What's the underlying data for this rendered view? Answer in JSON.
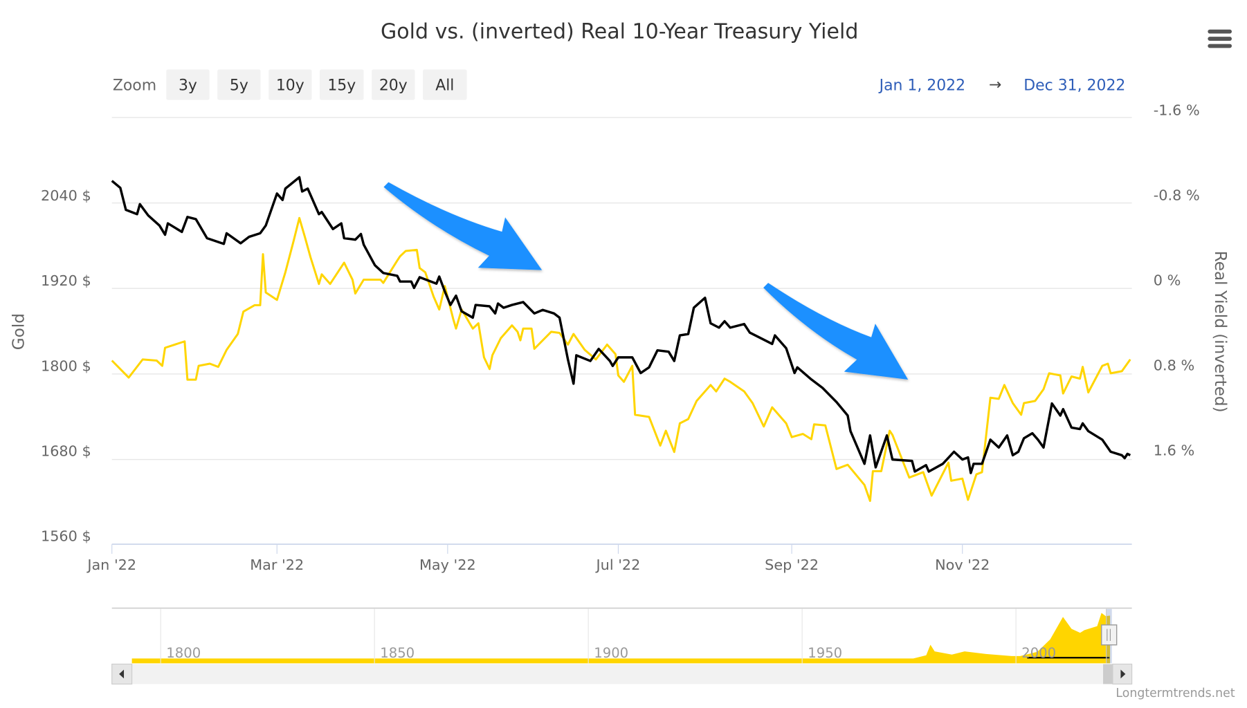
{
  "title": "Gold vs. (inverted) Real 10-Year Treasury Yield",
  "range_selector": {
    "label": "Zoom",
    "buttons": [
      "3y",
      "5y",
      "10y",
      "15y",
      "20y",
      "All"
    ],
    "from": "Jan 1, 2022",
    "arrow": "→",
    "to": "Dec 31, 2022"
  },
  "watermark": "Longtermtrends.net",
  "colors": {
    "gold": "#000000",
    "yield": "#FFD500",
    "arrow": "#1E90FF",
    "date_link": "#2E5DB8"
  },
  "chart_data": {
    "type": "line",
    "title": "Gold vs. (inverted) Real 10-Year Treasury Yield",
    "x_unit": "day of year 2022",
    "xlim": [
      0,
      364
    ],
    "x_ticks": [
      {
        "day": 0,
        "label": "Jan '22"
      },
      {
        "day": 59,
        "label": "Mar '22"
      },
      {
        "day": 120,
        "label": "May '22"
      },
      {
        "day": 181,
        "label": "Jul '22"
      },
      {
        "day": 243,
        "label": "Sep '22"
      },
      {
        "day": 304,
        "label": "Nov '22"
      }
    ],
    "left_axis": {
      "label": "Gold",
      "ylim": [
        1560,
        2160
      ],
      "ticks": [
        "2040 $",
        "1920 $",
        "1800 $",
        "1680 $",
        "1560 $"
      ],
      "tick_values": [
        2040,
        1920,
        1800,
        1680,
        1560
      ]
    },
    "right_axis": {
      "label": "Real Yield (inverted)",
      "ylim": [
        -1.6,
        1.6
      ],
      "inverted": true,
      "ticks": [
        "-1.6 %",
        "-0.8 %",
        "0 %",
        "0.8 %",
        "1.6 %"
      ],
      "tick_values": [
        -1.6,
        -0.8,
        0,
        0.8,
        1.6
      ]
    },
    "grid": true,
    "series": [
      {
        "name": "Gold",
        "axis": "left",
        "points": [
          [
            0,
            2060
          ],
          [
            3,
            2050
          ],
          [
            5,
            2019
          ],
          [
            9,
            2013
          ],
          [
            10,
            2027
          ],
          [
            13,
            2011
          ],
          [
            17,
            1997
          ],
          [
            19,
            1984
          ],
          [
            20,
            2000
          ],
          [
            25,
            1988
          ],
          [
            27,
            2009
          ],
          [
            30,
            2006
          ],
          [
            34,
            1979
          ],
          [
            40,
            1971
          ],
          [
            41,
            1986
          ],
          [
            46,
            1972
          ],
          [
            49,
            1981
          ],
          [
            53,
            1986
          ],
          [
            55,
            1997
          ],
          [
            59,
            2042
          ],
          [
            61,
            2033
          ],
          [
            62,
            2049
          ],
          [
            67,
            2065
          ],
          [
            68,
            2045
          ],
          [
            70,
            2049
          ],
          [
            74,
            2013
          ],
          [
            75,
            2016
          ],
          [
            79,
            1992
          ],
          [
            82,
            2000
          ],
          [
            83,
            1979
          ],
          [
            87,
            1977
          ],
          [
            89,
            1985
          ],
          [
            90,
            1970
          ],
          [
            94,
            1941
          ],
          [
            97,
            1930
          ],
          [
            102,
            1926
          ],
          [
            103,
            1918
          ],
          [
            107,
            1918
          ],
          [
            108,
            1909
          ],
          [
            110,
            1924
          ],
          [
            116,
            1915
          ],
          [
            117,
            1925
          ],
          [
            119,
            1904
          ],
          [
            121,
            1885
          ],
          [
            123,
            1898
          ],
          [
            125,
            1876
          ],
          [
            129,
            1867
          ],
          [
            130,
            1885
          ],
          [
            135,
            1883
          ],
          [
            137,
            1873
          ],
          [
            138,
            1887
          ],
          [
            140,
            1881
          ],
          [
            143,
            1885
          ],
          [
            147,
            1889
          ],
          [
            151,
            1873
          ],
          [
            154,
            1878
          ],
          [
            158,
            1873
          ],
          [
            160,
            1867
          ],
          [
            163,
            1808
          ],
          [
            165,
            1774
          ],
          [
            166,
            1814
          ],
          [
            171,
            1806
          ],
          [
            174,
            1823
          ],
          [
            178,
            1806
          ],
          [
            179,
            1799
          ],
          [
            181,
            1811
          ],
          [
            186,
            1811
          ],
          [
            189,
            1789
          ],
          [
            192,
            1797
          ],
          [
            195,
            1821
          ],
          [
            199,
            1819
          ],
          [
            201,
            1806
          ],
          [
            203,
            1842
          ],
          [
            206,
            1844
          ],
          [
            208,
            1881
          ],
          [
            212,
            1895
          ],
          [
            214,
            1859
          ],
          [
            217,
            1853
          ],
          [
            219,
            1862
          ],
          [
            221,
            1853
          ],
          [
            226,
            1858
          ],
          [
            228,
            1846
          ],
          [
            231,
            1840
          ],
          [
            236,
            1830
          ],
          [
            237,
            1842
          ],
          [
            241,
            1824
          ],
          [
            244,
            1789
          ],
          [
            245,
            1797
          ],
          [
            250,
            1780
          ],
          [
            254,
            1768
          ],
          [
            259,
            1748
          ],
          [
            263,
            1729
          ],
          [
            264,
            1707
          ],
          [
            269,
            1661
          ],
          [
            271,
            1701
          ],
          [
            273,
            1656
          ],
          [
            277,
            1701
          ],
          [
            279,
            1667
          ],
          [
            286,
            1665
          ],
          [
            287,
            1650
          ],
          [
            291,
            1659
          ],
          [
            292,
            1650
          ],
          [
            297,
            1661
          ],
          [
            301,
            1678
          ],
          [
            304,
            1667
          ],
          [
            306,
            1670
          ],
          [
            307,
            1648
          ],
          [
            308,
            1661
          ],
          [
            311,
            1661
          ],
          [
            314,
            1695
          ],
          [
            317,
            1684
          ],
          [
            320,
            1701
          ],
          [
            322,
            1673
          ],
          [
            324,
            1678
          ],
          [
            326,
            1697
          ],
          [
            329,
            1704
          ],
          [
            331,
            1695
          ],
          [
            333,
            1684
          ],
          [
            336,
            1746
          ],
          [
            339,
            1729
          ],
          [
            340,
            1738
          ],
          [
            343,
            1712
          ],
          [
            346,
            1710
          ],
          [
            347,
            1718
          ],
          [
            349,
            1707
          ],
          [
            354,
            1695
          ],
          [
            357,
            1678
          ],
          [
            361,
            1673
          ],
          [
            362,
            1669
          ],
          [
            363,
            1675
          ],
          [
            364,
            1673
          ]
        ]
      },
      {
        "name": "Real Yield (inverted)",
        "axis": "right",
        "points": [
          [
            0,
            0.76
          ],
          [
            6,
            0.92
          ],
          [
            11,
            0.75
          ],
          [
            16,
            0.76
          ],
          [
            18,
            0.81
          ],
          [
            19,
            0.64
          ],
          [
            26,
            0.58
          ],
          [
            27,
            0.94
          ],
          [
            30,
            0.94
          ],
          [
            31,
            0.81
          ],
          [
            35,
            0.79
          ],
          [
            38,
            0.82
          ],
          [
            41,
            0.66
          ],
          [
            45,
            0.51
          ],
          [
            47,
            0.3
          ],
          [
            51,
            0.24
          ],
          [
            53,
            0.24
          ],
          [
            54,
            -0.24
          ],
          [
            55,
            0.12
          ],
          [
            59,
            0.19
          ],
          [
            62,
            -0.07
          ],
          [
            65,
            -0.37
          ],
          [
            67,
            -0.58
          ],
          [
            69,
            -0.4
          ],
          [
            71,
            -0.21
          ],
          [
            74,
            0.04
          ],
          [
            75,
            -0.05
          ],
          [
            78,
            0.04
          ],
          [
            83,
            -0.16
          ],
          [
            86,
            0.0
          ],
          [
            87,
            0.13
          ],
          [
            90,
            0.0
          ],
          [
            96,
            0.0
          ],
          [
            97,
            0.03
          ],
          [
            102,
            -0.18
          ],
          [
            103,
            -0.22
          ],
          [
            105,
            -0.27
          ],
          [
            109,
            -0.28
          ],
          [
            110,
            -0.11
          ],
          [
            112,
            -0.07
          ],
          [
            115,
            0.16
          ],
          [
            117,
            0.28
          ],
          [
            119,
            0.06
          ],
          [
            122,
            0.37
          ],
          [
            123,
            0.46
          ],
          [
            125,
            0.28
          ],
          [
            129,
            0.46
          ],
          [
            131,
            0.41
          ],
          [
            133,
            0.73
          ],
          [
            135,
            0.84
          ],
          [
            136,
            0.71
          ],
          [
            139,
            0.55
          ],
          [
            143,
            0.43
          ],
          [
            145,
            0.49
          ],
          [
            146,
            0.57
          ],
          [
            147,
            0.46
          ],
          [
            150,
            0.46
          ],
          [
            151,
            0.65
          ],
          [
            157,
            0.49
          ],
          [
            160,
            0.5
          ],
          [
            163,
            0.61
          ],
          [
            165,
            0.51
          ],
          [
            169,
            0.66
          ],
          [
            173,
            0.75
          ],
          [
            177,
            0.61
          ],
          [
            180,
            0.7
          ],
          [
            181,
            0.9
          ],
          [
            183,
            0.96
          ],
          [
            186,
            0.81
          ],
          [
            187,
            1.27
          ],
          [
            192,
            1.29
          ],
          [
            196,
            1.56
          ],
          [
            198,
            1.42
          ],
          [
            201,
            1.62
          ],
          [
            203,
            1.35
          ],
          [
            206,
            1.31
          ],
          [
            209,
            1.14
          ],
          [
            214,
            0.99
          ],
          [
            216,
            1.05
          ],
          [
            219,
            0.93
          ],
          [
            221,
            0.96
          ],
          [
            226,
            1.05
          ],
          [
            229,
            1.16
          ],
          [
            233,
            1.38
          ],
          [
            236,
            1.2
          ],
          [
            241,
            1.35
          ],
          [
            243,
            1.48
          ],
          [
            247,
            1.45
          ],
          [
            250,
            1.5
          ],
          [
            251,
            1.36
          ],
          [
            255,
            1.37
          ],
          [
            259,
            1.78
          ],
          [
            263,
            1.74
          ],
          [
            269,
            1.93
          ],
          [
            271,
            2.08
          ],
          [
            272,
            1.8
          ],
          [
            275,
            1.8
          ],
          [
            278,
            1.42
          ],
          [
            279,
            1.46
          ],
          [
            285,
            1.86
          ],
          [
            290,
            1.81
          ],
          [
            293,
            2.03
          ],
          [
            299,
            1.72
          ],
          [
            300,
            1.89
          ],
          [
            304,
            1.87
          ],
          [
            306,
            2.07
          ],
          [
            309,
            1.83
          ],
          [
            311,
            1.81
          ],
          [
            314,
            1.11
          ],
          [
            317,
            1.12
          ],
          [
            319,
            0.99
          ],
          [
            322,
            1.16
          ],
          [
            325,
            1.27
          ],
          [
            326,
            1.16
          ],
          [
            330,
            1.14
          ],
          [
            333,
            1.03
          ],
          [
            335,
            0.88
          ],
          [
            339,
            0.9
          ],
          [
            340,
            1.07
          ],
          [
            343,
            0.91
          ],
          [
            346,
            0.93
          ],
          [
            347,
            0.82
          ],
          [
            349,
            1.06
          ],
          [
            354,
            0.81
          ],
          [
            356,
            0.79
          ],
          [
            357,
            0.88
          ],
          [
            361,
            0.86
          ],
          [
            364,
            0.75
          ]
        ]
      }
    ],
    "annotations": [
      "downward-arrow (Apr–Jun)",
      "downward-arrow (Sep–Oct)"
    ],
    "navigator": {
      "x_ticks": [
        "1800",
        "1850",
        "1900",
        "1950",
        "2000"
      ],
      "tick_years": [
        1800,
        1850,
        1900,
        1950,
        2000
      ],
      "series": [
        [
          1785,
          20
        ],
        [
          1930,
          20
        ],
        [
          1935,
          35
        ],
        [
          1970,
          36
        ],
        [
          1974,
          160
        ],
        [
          1976,
          130
        ],
        [
          1979,
          300
        ],
        [
          1980,
          700
        ],
        [
          1981,
          450
        ],
        [
          1985,
          330
        ],
        [
          1988,
          450
        ],
        [
          1993,
          350
        ],
        [
          1999,
          270
        ],
        [
          2001,
          270
        ],
        [
          2005,
          430
        ],
        [
          2008,
          900
        ],
        [
          2011,
          1750
        ],
        [
          2013,
          1300
        ],
        [
          2015,
          1150
        ],
        [
          2016,
          1250
        ],
        [
          2019,
          1400
        ],
        [
          2020,
          1900
        ],
        [
          2021,
          1780
        ],
        [
          2022,
          1800
        ]
      ],
      "selected_range": [
        "2022-01-01",
        "2022-12-31"
      ]
    }
  }
}
